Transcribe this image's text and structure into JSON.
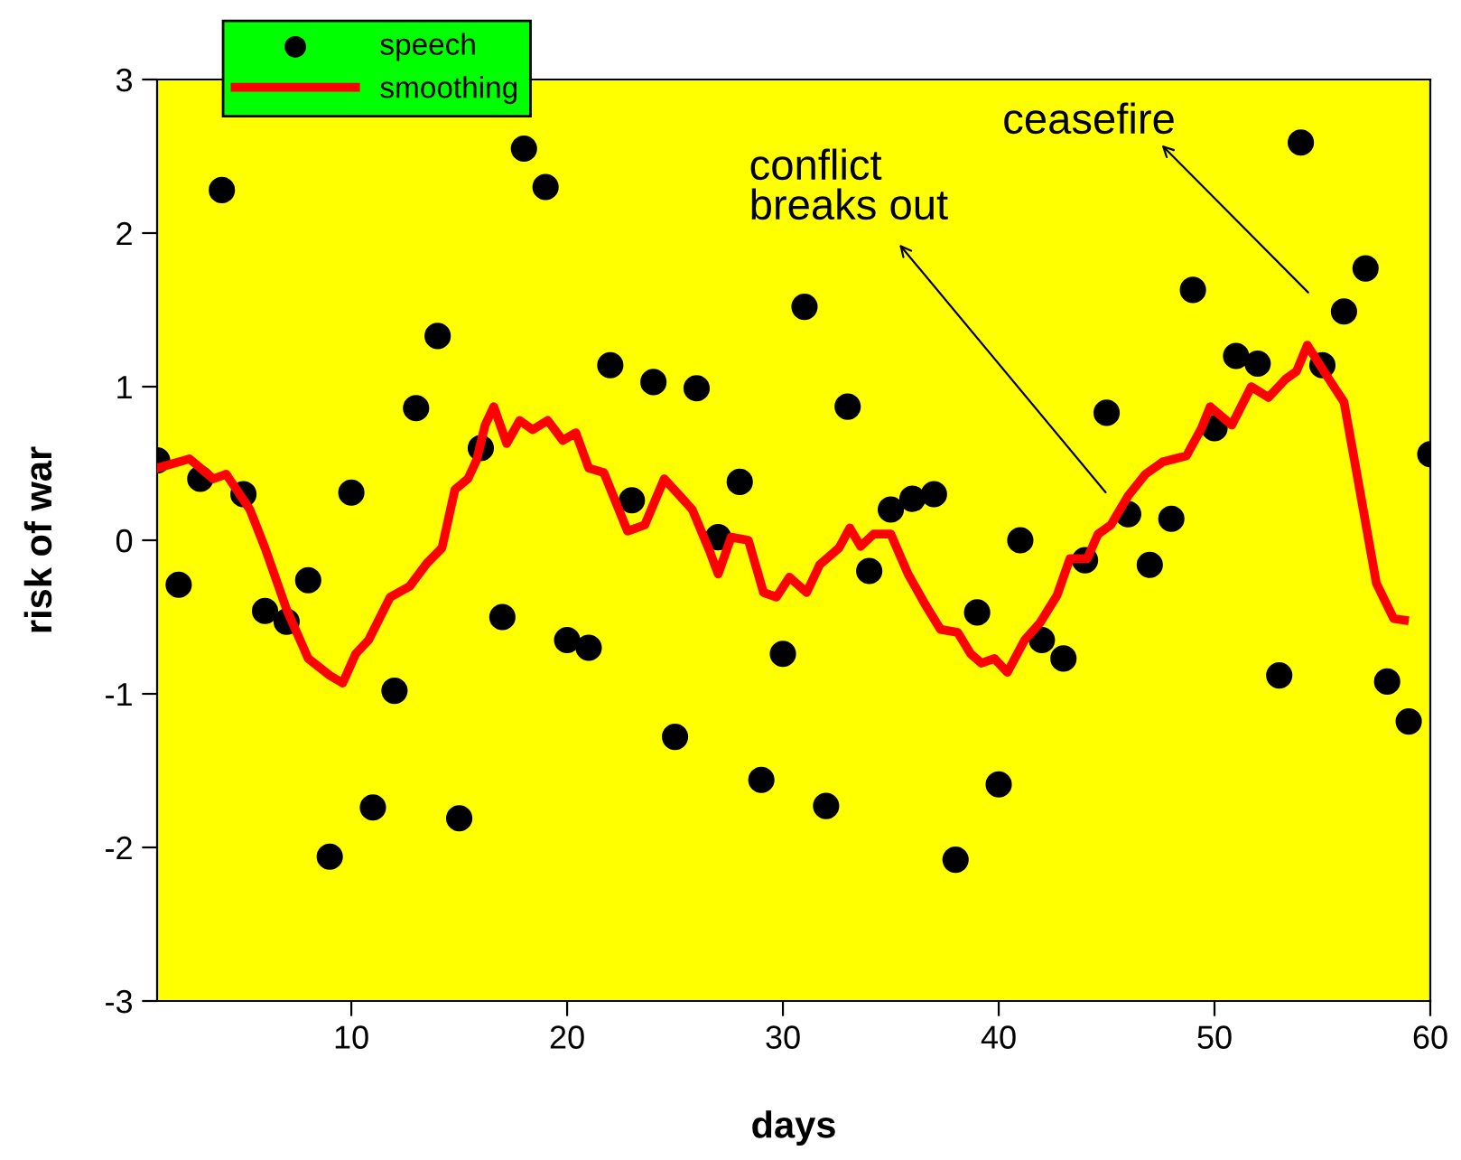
{
  "chart_data": {
    "type": "scatter",
    "xlabel": "days",
    "ylabel": "risk of war",
    "xlim": [
      1,
      60
    ],
    "ylim": [
      -3,
      3
    ],
    "xticks": [
      10,
      20,
      30,
      40,
      50,
      60
    ],
    "yticks": [
      -3,
      -2,
      -1,
      0,
      1,
      2,
      3
    ],
    "grid": false,
    "legend": "top left",
    "series": [
      {
        "name": "speech",
        "color": "#000000",
        "marker": "circle",
        "x": [
          1,
          2,
          3,
          4,
          5,
          6,
          7,
          8,
          9,
          10,
          11,
          12,
          13,
          14,
          15,
          16,
          17,
          18,
          19,
          20,
          21,
          22,
          23,
          24,
          25,
          26,
          27,
          28,
          29,
          30,
          31,
          32,
          33,
          34,
          35,
          36,
          37,
          38,
          39,
          40,
          41,
          42,
          43,
          44,
          45,
          46,
          47,
          48,
          49,
          50,
          51,
          52,
          53,
          54,
          55,
          56,
          57,
          58,
          59,
          60
        ],
        "values": [
          0.52,
          -0.29,
          0.4,
          2.28,
          0.3,
          -0.46,
          -0.53,
          -0.26,
          -2.06,
          0.31,
          -1.74,
          -0.98,
          0.86,
          1.33,
          -1.81,
          0.6,
          -0.5,
          2.55,
          2.3,
          -0.65,
          -0.7,
          1.14,
          0.26,
          1.03,
          -1.28,
          0.99,
          0.02,
          0.38,
          -1.56,
          -0.74,
          1.52,
          -1.73,
          0.87,
          -0.2,
          0.2,
          0.27,
          0.3,
          -2.08,
          -0.47,
          -1.59,
          0.0,
          -0.65,
          -0.77,
          -0.13,
          0.83,
          0.17,
          -0.16,
          0.14,
          1.63,
          0.73,
          1.2,
          1.15,
          -0.88,
          2.59,
          1.14,
          1.49,
          1.77,
          -0.92,
          -1.18,
          0.56
        ]
      },
      {
        "name": "smoothing",
        "type": "line",
        "color": "#ff0000",
        "marker": "none",
        "line_style": "solid",
        "x": [
          1,
          2.5,
          3.6,
          4.2,
          5.3,
          6,
          7,
          8,
          9,
          9.6,
          10.2,
          10.8,
          11.8,
          12.7,
          13.5,
          14.2,
          14.8,
          15.4,
          15.8,
          16.2,
          16.6,
          17.2,
          17.8,
          18.4,
          19.1,
          19.8,
          20.4,
          21,
          21.7,
          22.8,
          23.6,
          24.5,
          25.8,
          26.6,
          27,
          27.6,
          28.4,
          29.1,
          29.7,
          30.3,
          31.1,
          31.7,
          32.6,
          33.1,
          33.6,
          34.2,
          35,
          35.8,
          36.6,
          37.3,
          38.1,
          38.7,
          39.2,
          39.8,
          40.4,
          41.2,
          41.9,
          42.7,
          43.3,
          44.1,
          44.6,
          45.2,
          46,
          46.8,
          47.6,
          48.7,
          49.4,
          49.8,
          50.8,
          51.7,
          52.5,
          53.3,
          53.8,
          54.3,
          55.3,
          56,
          56.6,
          57.5,
          58.3,
          58.8
        ],
        "values": [
          0.47,
          0.53,
          0.4,
          0.43,
          0.2,
          -0.05,
          -0.45,
          -0.77,
          -0.88,
          -0.93,
          -0.74,
          -0.65,
          -0.37,
          -0.3,
          -0.15,
          -0.05,
          0.33,
          0.4,
          0.52,
          0.75,
          0.87,
          0.63,
          0.78,
          0.72,
          0.78,
          0.65,
          0.7,
          0.47,
          0.44,
          0.06,
          0.1,
          0.4,
          0.2,
          -0.07,
          -0.22,
          0.02,
          0.0,
          -0.34,
          -0.37,
          -0.24,
          -0.34,
          -0.16,
          -0.05,
          0.08,
          -0.04,
          0.04,
          0.04,
          -0.22,
          -0.42,
          -0.58,
          -0.6,
          -0.74,
          -0.8,
          -0.77,
          -0.86,
          -0.65,
          -0.54,
          -0.36,
          -0.12,
          -0.12,
          0.04,
          0.1,
          0.29,
          0.43,
          0.51,
          0.55,
          0.73,
          0.87,
          0.75,
          1.0,
          0.93,
          1.05,
          1.1,
          1.27,
          1.05,
          0.9,
          0.43,
          -0.28,
          -0.51,
          -0.52
        ]
      }
    ],
    "annotations": [
      "conflict\nbreaks out",
      "ceasefire"
    ]
  }
}
